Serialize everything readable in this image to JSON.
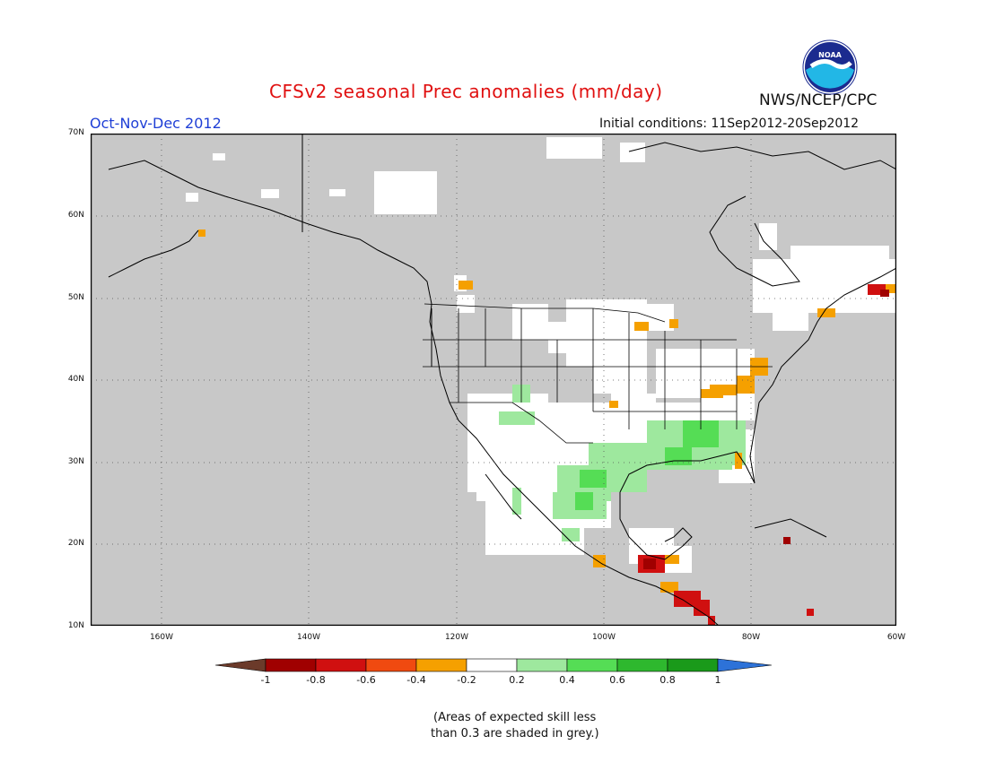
{
  "title": "CFSv2 seasonal Prec anomalies (mm/day)",
  "period": "Oct-Nov-Dec 2012",
  "initial_conditions": "Initial conditions: 11Sep2012-20Sep2012",
  "agency": "NWS/NCEP/CPC",
  "logo_text": "NOAA",
  "lat_labels": [
    "70N",
    "60N",
    "50N",
    "40N",
    "30N",
    "20N",
    "10N"
  ],
  "lon_labels": [
    "160W",
    "140W",
    "120W",
    "100W",
    "80W",
    "60W"
  ],
  "legend": {
    "labels": [
      "-1",
      "-0.8",
      "-0.6",
      "-0.4",
      "-0.2",
      "0.2",
      "0.4",
      "0.6",
      "0.8",
      "1"
    ],
    "colors": [
      "#6b3a2a",
      "#a00000",
      "#d01010",
      "#f04a10",
      "#f5a000",
      "#ffffff",
      "#9ee89e",
      "#55dd55",
      "#2eb82e",
      "#1a9a1a",
      "#2d72d8"
    ]
  },
  "note_line1": "(Areas of expected skill less",
  "note_line2": "than 0.3 are shaded in grey.)",
  "map_colors": {
    "low_skill_grey": "#c8c8c8",
    "coast": "#000000"
  }
}
